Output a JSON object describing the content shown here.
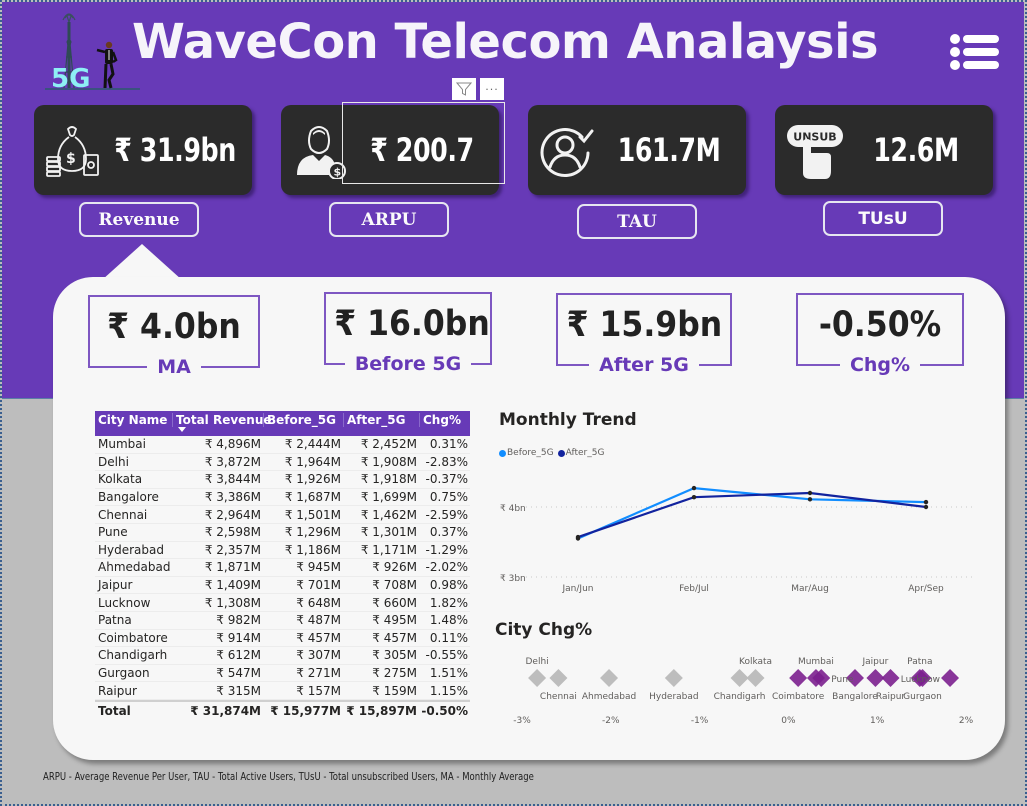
{
  "header": {
    "title": "WaveCon Telecom Analaysis",
    "logo_icon": "5g-tower-businessman-icon",
    "menu_icon": "list-menu-icon",
    "visual_tools": {
      "filter_icon": "filter-icon",
      "more_icon": "more-options-icon",
      "more_label": "···"
    }
  },
  "kpis": [
    {
      "id": "revenue",
      "icon": "money-bag-icon",
      "value": "₹ 31.9bn",
      "button_label": "Revenue"
    },
    {
      "id": "arpu",
      "icon": "user-coin-icon",
      "value": "₹ 200.7",
      "button_label": "ARPU"
    },
    {
      "id": "tau",
      "icon": "user-check-icon",
      "value": "161.7M",
      "button_label": "TAU"
    },
    {
      "id": "tusu",
      "icon": "unsubscribe-hand-icon",
      "value": "12.6M",
      "button_label": "TUsU",
      "icon_text": "UNSUB"
    }
  ],
  "metrics": [
    {
      "id": "ma",
      "value": "₹ 4.0bn",
      "label": "MA"
    },
    {
      "id": "before",
      "value": "₹ 16.0bn",
      "label": "Before 5G"
    },
    {
      "id": "after",
      "value": "₹ 15.9bn",
      "label": "After 5G"
    },
    {
      "id": "chg",
      "value": "-0.50%",
      "label": "Chg%"
    }
  ],
  "table": {
    "columns": [
      "City Name",
      "Total Revenue",
      "Before_5G",
      "After_5G",
      "Chg%"
    ],
    "sorted_column": "Total Revenue",
    "rows": [
      [
        "Mumbai",
        "₹ 4,896M",
        "₹ 2,444M",
        "₹ 2,452M",
        "0.31%"
      ],
      [
        "Delhi",
        "₹ 3,872M",
        "₹ 1,964M",
        "₹ 1,908M",
        "-2.83%"
      ],
      [
        "Kolkata",
        "₹ 3,844M",
        "₹ 1,926M",
        "₹ 1,918M",
        "-0.37%"
      ],
      [
        "Bangalore",
        "₹ 3,386M",
        "₹ 1,687M",
        "₹ 1,699M",
        "0.75%"
      ],
      [
        "Chennai",
        "₹ 2,964M",
        "₹ 1,501M",
        "₹ 1,462M",
        "-2.59%"
      ],
      [
        "Pune",
        "₹ 2,598M",
        "₹ 1,296M",
        "₹ 1,301M",
        "0.37%"
      ],
      [
        "Hyderabad",
        "₹ 2,357M",
        "₹ 1,186M",
        "₹ 1,171M",
        "-1.29%"
      ],
      [
        "Ahmedabad",
        "₹ 1,871M",
        "₹ 945M",
        "₹ 926M",
        "-2.02%"
      ],
      [
        "Jaipur",
        "₹ 1,409M",
        "₹ 701M",
        "₹ 708M",
        "0.98%"
      ],
      [
        "Lucknow",
        "₹ 1,308M",
        "₹ 648M",
        "₹ 660M",
        "1.82%"
      ],
      [
        "Patna",
        "₹ 982M",
        "₹ 487M",
        "₹ 495M",
        "1.48%"
      ],
      [
        "Coimbatore",
        "₹ 914M",
        "₹ 457M",
        "₹ 457M",
        "0.11%"
      ],
      [
        "Chandigarh",
        "₹ 612M",
        "₹ 307M",
        "₹ 305M",
        "-0.55%"
      ],
      [
        "Gurgaon",
        "₹ 547M",
        "₹ 271M",
        "₹ 275M",
        "1.51%"
      ],
      [
        "Raipur",
        "₹ 315M",
        "₹ 157M",
        "₹ 159M",
        "1.15%"
      ]
    ],
    "total": [
      "Total",
      "₹ 31,874M",
      "₹ 15,977M",
      "₹ 15,897M",
      "-0.50%"
    ]
  },
  "chart_data": [
    {
      "type": "line",
      "title": "Monthly Trend",
      "categories": [
        "Jan/Jun",
        "Feb/Jul",
        "Mar/Aug",
        "Apr/Sep"
      ],
      "series": [
        {
          "name": "Before_5G",
          "color": "#118dff",
          "values": [
            3.55,
            4.27,
            4.11,
            4.07
          ]
        },
        {
          "name": "After_5G",
          "color": "#12239e",
          "values": [
            3.57,
            4.14,
            4.2,
            4.0
          ]
        }
      ],
      "y_ticks": [
        {
          "value": 3,
          "label": "₹ 3bn"
        },
        {
          "value": 4,
          "label": "₹ 4bn"
        }
      ],
      "ylim": [
        3,
        4.3
      ],
      "xlabel": "",
      "ylabel": "",
      "legend": "top-left",
      "grid": true
    },
    {
      "type": "scatter",
      "title": "City Chg%",
      "x_ticks": [
        {
          "value": -3,
          "label": "-3%"
        },
        {
          "value": -2,
          "label": "-2%"
        },
        {
          "value": -1,
          "label": "-1%"
        },
        {
          "value": 0,
          "label": "0%"
        },
        {
          "value": 1,
          "label": "1%"
        },
        {
          "value": 2,
          "label": "2%"
        }
      ],
      "xlim": [
        -3,
        2
      ],
      "negative_color": "#bdbdbd",
      "positive_color": "#7b1f8e",
      "points": [
        {
          "city": "Delhi",
          "value": -2.83,
          "label_pos": "above"
        },
        {
          "city": "Chennai",
          "value": -2.59,
          "label_pos": "below"
        },
        {
          "city": "Ahmedabad",
          "value": -2.02,
          "label_pos": "below"
        },
        {
          "city": "Hyderabad",
          "value": -1.29,
          "label_pos": "below"
        },
        {
          "city": "Chandigarh",
          "value": -0.55,
          "label_pos": "below"
        },
        {
          "city": "Kolkata",
          "value": -0.37,
          "label_pos": "above"
        },
        {
          "city": "Coimbatore",
          "value": 0.11,
          "label_pos": "below"
        },
        {
          "city": "Mumbai",
          "value": 0.31,
          "label_pos": "above"
        },
        {
          "city": "Pune",
          "value": 0.37,
          "label_pos": "right"
        },
        {
          "city": "Bangalore",
          "value": 0.75,
          "label_pos": "below"
        },
        {
          "city": "Jaipur",
          "value": 0.98,
          "label_pos": "above"
        },
        {
          "city": "Raipur",
          "value": 1.15,
          "label_pos": "below"
        },
        {
          "city": "Patna",
          "value": 1.48,
          "label_pos": "above"
        },
        {
          "city": "Gurgaon",
          "value": 1.51,
          "label_pos": "below"
        },
        {
          "city": "Lucknow",
          "value": 1.82,
          "label_pos": "left"
        }
      ]
    }
  ],
  "footer": {
    "text": "ARPU - Average Revenue Per User, TAU - Total Active Users, TUsU - Total unsubscribed Users, MA - Monthly Average"
  }
}
